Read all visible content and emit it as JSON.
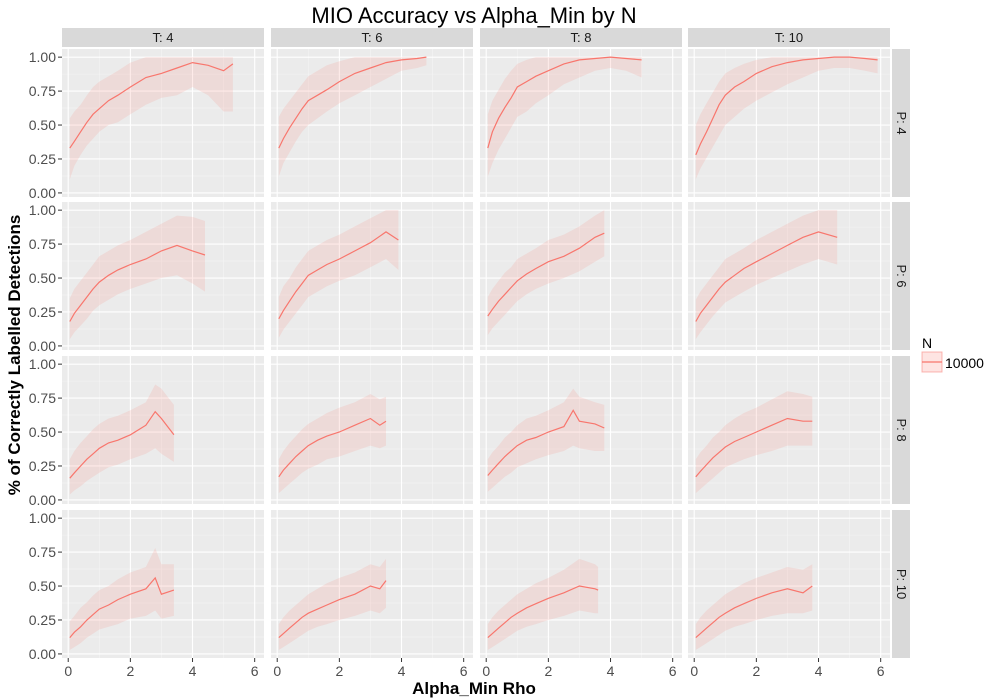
{
  "chart_data": {
    "type": "line",
    "title": "MIO Accuracy vs Alpha_Min by N",
    "xlabel": "Alpha_Min Rho",
    "ylabel": "% of Correctly Labelled Detections",
    "xlim": [
      -0.2,
      6.3
    ],
    "ylim": [
      -0.03,
      1.06
    ],
    "x_ticks": [
      0,
      2,
      4,
      6
    ],
    "y_ticks": [
      0.0,
      0.25,
      0.5,
      0.75,
      1.0
    ],
    "y_tick_labels": [
      "0.00",
      "0.25",
      "0.50",
      "0.75",
      "1.00"
    ],
    "column_facet_labels": [
      "T: 4",
      "T: 6",
      "T: 8",
      "T: 10"
    ],
    "row_facet_labels": [
      "P: 4",
      "P: 6",
      "P: 8",
      "P: 10"
    ],
    "grid": true,
    "legend": {
      "title": "N",
      "placement": "right",
      "entries": [
        "10000"
      ]
    },
    "colors": {
      "line": "#F8766D",
      "ribbon": "#F8766D",
      "panel": "#EBEBEB",
      "strip": "#D9D9D9",
      "grid": "#FFFFFF"
    },
    "panels": [
      [
        {
          "x": [
            0.05,
            0.2,
            0.4,
            0.6,
            0.8,
            1.0,
            1.3,
            1.6,
            2.0,
            2.5,
            3.0,
            3.5,
            4.0,
            4.5,
            5.0,
            5.3
          ],
          "y": [
            0.33,
            0.38,
            0.45,
            0.52,
            0.58,
            0.62,
            0.68,
            0.72,
            0.78,
            0.85,
            0.88,
            0.92,
            0.96,
            0.94,
            0.9,
            0.95
          ],
          "lo": [
            0.1,
            0.2,
            0.28,
            0.35,
            0.4,
            0.45,
            0.5,
            0.52,
            0.58,
            0.65,
            0.7,
            0.72,
            0.78,
            0.72,
            0.6,
            0.6
          ],
          "hi": [
            0.55,
            0.6,
            0.65,
            0.72,
            0.78,
            0.82,
            0.86,
            0.9,
            0.96,
            1.0,
            1.0,
            1.0,
            1.0,
            1.0,
            1.0,
            1.0
          ]
        },
        {
          "x": [
            0.05,
            0.2,
            0.4,
            0.6,
            0.8,
            1.0,
            1.3,
            1.6,
            2.0,
            2.5,
            3.0,
            3.5,
            4.0,
            4.5,
            4.8
          ],
          "y": [
            0.33,
            0.4,
            0.48,
            0.55,
            0.62,
            0.68,
            0.72,
            0.76,
            0.82,
            0.88,
            0.92,
            0.96,
            0.98,
            0.99,
            1.0
          ],
          "lo": [
            0.12,
            0.22,
            0.3,
            0.38,
            0.45,
            0.5,
            0.55,
            0.6,
            0.66,
            0.72,
            0.78,
            0.84,
            0.9,
            0.92,
            0.94
          ],
          "hi": [
            0.56,
            0.62,
            0.68,
            0.74,
            0.8,
            0.86,
            0.9,
            0.94,
            0.97,
            1.0,
            1.0,
            1.0,
            1.0,
            1.0,
            1.0
          ]
        },
        {
          "x": [
            0.05,
            0.2,
            0.4,
            0.6,
            0.8,
            1.0,
            1.3,
            1.6,
            2.0,
            2.5,
            3.0,
            3.5,
            4.0,
            4.5,
            5.0
          ],
          "y": [
            0.33,
            0.45,
            0.55,
            0.63,
            0.7,
            0.78,
            0.82,
            0.86,
            0.9,
            0.95,
            0.98,
            0.99,
            1.0,
            0.99,
            0.98
          ],
          "lo": [
            0.12,
            0.22,
            0.32,
            0.4,
            0.48,
            0.56,
            0.6,
            0.66,
            0.72,
            0.8,
            0.85,
            0.9,
            0.92,
            0.9,
            0.85
          ],
          "hi": [
            0.58,
            0.68,
            0.76,
            0.84,
            0.9,
            0.95,
            0.98,
            1.0,
            1.0,
            1.0,
            1.0,
            1.0,
            1.0,
            1.0,
            1.0
          ]
        },
        {
          "x": [
            0.05,
            0.2,
            0.4,
            0.6,
            0.8,
            1.0,
            1.3,
            1.6,
            2.0,
            2.5,
            3.0,
            3.5,
            4.0,
            4.5,
            5.0,
            5.5,
            5.9
          ],
          "y": [
            0.28,
            0.36,
            0.45,
            0.55,
            0.65,
            0.72,
            0.78,
            0.82,
            0.88,
            0.93,
            0.96,
            0.98,
            0.99,
            1.0,
            1.0,
            0.99,
            0.98
          ],
          "lo": [
            0.1,
            0.18,
            0.26,
            0.34,
            0.42,
            0.5,
            0.56,
            0.62,
            0.68,
            0.74,
            0.8,
            0.85,
            0.9,
            0.92,
            0.92,
            0.9,
            0.88
          ],
          "hi": [
            0.5,
            0.58,
            0.66,
            0.74,
            0.82,
            0.88,
            0.92,
            0.95,
            0.98,
            1.0,
            1.0,
            1.0,
            1.0,
            1.0,
            1.0,
            1.0,
            1.0
          ]
        }
      ],
      [
        {
          "x": [
            0.05,
            0.2,
            0.4,
            0.6,
            0.8,
            1.0,
            1.3,
            1.6,
            2.0,
            2.5,
            3.0,
            3.5,
            4.0,
            4.4
          ],
          "y": [
            0.18,
            0.24,
            0.3,
            0.36,
            0.42,
            0.47,
            0.52,
            0.56,
            0.6,
            0.64,
            0.7,
            0.74,
            0.7,
            0.67
          ],
          "lo": [
            0.05,
            0.1,
            0.15,
            0.2,
            0.26,
            0.3,
            0.34,
            0.38,
            0.42,
            0.46,
            0.5,
            0.52,
            0.46,
            0.4
          ],
          "hi": [
            0.35,
            0.42,
            0.48,
            0.54,
            0.6,
            0.66,
            0.7,
            0.74,
            0.78,
            0.84,
            0.9,
            0.96,
            0.95,
            0.92
          ]
        },
        {
          "x": [
            0.05,
            0.2,
            0.4,
            0.6,
            0.8,
            1.0,
            1.3,
            1.6,
            2.0,
            2.5,
            3.0,
            3.5,
            3.9
          ],
          "y": [
            0.2,
            0.26,
            0.33,
            0.4,
            0.46,
            0.52,
            0.56,
            0.6,
            0.64,
            0.7,
            0.76,
            0.84,
            0.78
          ],
          "lo": [
            0.06,
            0.12,
            0.18,
            0.24,
            0.3,
            0.36,
            0.4,
            0.44,
            0.48,
            0.52,
            0.58,
            0.64,
            0.56
          ],
          "hi": [
            0.36,
            0.44,
            0.5,
            0.58,
            0.64,
            0.7,
            0.74,
            0.78,
            0.82,
            0.88,
            0.94,
            1.0,
            1.0
          ]
        },
        {
          "x": [
            0.05,
            0.2,
            0.4,
            0.6,
            0.8,
            1.0,
            1.3,
            1.6,
            2.0,
            2.5,
            3.0,
            3.5,
            3.8
          ],
          "y": [
            0.22,
            0.27,
            0.33,
            0.38,
            0.43,
            0.48,
            0.53,
            0.57,
            0.62,
            0.66,
            0.72,
            0.8,
            0.83
          ],
          "lo": [
            0.08,
            0.13,
            0.18,
            0.23,
            0.28,
            0.33,
            0.38,
            0.42,
            0.46,
            0.5,
            0.55,
            0.62,
            0.66
          ],
          "hi": [
            0.36,
            0.42,
            0.48,
            0.54,
            0.58,
            0.64,
            0.68,
            0.72,
            0.78,
            0.82,
            0.88,
            0.96,
            1.0
          ]
        },
        {
          "x": [
            0.05,
            0.2,
            0.4,
            0.6,
            0.8,
            1.0,
            1.3,
            1.6,
            2.0,
            2.5,
            3.0,
            3.5,
            4.0,
            4.6
          ],
          "y": [
            0.18,
            0.24,
            0.3,
            0.36,
            0.42,
            0.47,
            0.52,
            0.57,
            0.62,
            0.68,
            0.74,
            0.8,
            0.84,
            0.8
          ],
          "lo": [
            0.05,
            0.1,
            0.16,
            0.22,
            0.27,
            0.32,
            0.36,
            0.4,
            0.45,
            0.5,
            0.55,
            0.6,
            0.64,
            0.6
          ],
          "hi": [
            0.34,
            0.4,
            0.46,
            0.52,
            0.58,
            0.64,
            0.68,
            0.72,
            0.78,
            0.84,
            0.9,
            0.96,
            1.0,
            1.0
          ]
        }
      ],
      [
        {
          "x": [
            0.05,
            0.2,
            0.4,
            0.6,
            0.8,
            1.0,
            1.3,
            1.6,
            2.0,
            2.5,
            2.8,
            3.0,
            3.4
          ],
          "y": [
            0.16,
            0.2,
            0.25,
            0.3,
            0.34,
            0.38,
            0.42,
            0.44,
            0.48,
            0.55,
            0.65,
            0.6,
            0.48
          ],
          "lo": [
            0.04,
            0.07,
            0.1,
            0.14,
            0.17,
            0.2,
            0.24,
            0.26,
            0.3,
            0.34,
            0.38,
            0.34,
            0.28
          ],
          "hi": [
            0.3,
            0.36,
            0.42,
            0.47,
            0.52,
            0.56,
            0.6,
            0.62,
            0.66,
            0.72,
            0.85,
            0.82,
            0.7
          ]
        },
        {
          "x": [
            0.05,
            0.2,
            0.4,
            0.6,
            0.8,
            1.0,
            1.3,
            1.6,
            2.0,
            2.5,
            3.0,
            3.3,
            3.5
          ],
          "y": [
            0.17,
            0.22,
            0.27,
            0.32,
            0.36,
            0.4,
            0.44,
            0.47,
            0.5,
            0.55,
            0.6,
            0.55,
            0.58
          ],
          "lo": [
            0.05,
            0.08,
            0.12,
            0.16,
            0.2,
            0.23,
            0.26,
            0.3,
            0.32,
            0.36,
            0.4,
            0.38,
            0.4
          ],
          "hi": [
            0.3,
            0.36,
            0.42,
            0.47,
            0.52,
            0.56,
            0.6,
            0.64,
            0.68,
            0.72,
            0.78,
            0.74,
            0.76
          ]
        },
        {
          "x": [
            0.05,
            0.2,
            0.4,
            0.6,
            0.8,
            1.0,
            1.3,
            1.6,
            2.0,
            2.5,
            2.8,
            3.0,
            3.5,
            3.8
          ],
          "y": [
            0.18,
            0.22,
            0.27,
            0.32,
            0.36,
            0.4,
            0.44,
            0.46,
            0.5,
            0.54,
            0.66,
            0.58,
            0.56,
            0.53
          ],
          "lo": [
            0.06,
            0.09,
            0.13,
            0.17,
            0.2,
            0.24,
            0.27,
            0.3,
            0.33,
            0.36,
            0.4,
            0.38,
            0.36,
            0.36
          ],
          "hi": [
            0.3,
            0.35,
            0.4,
            0.46,
            0.5,
            0.55,
            0.6,
            0.62,
            0.66,
            0.72,
            0.82,
            0.76,
            0.72,
            0.7
          ]
        },
        {
          "x": [
            0.05,
            0.2,
            0.4,
            0.6,
            0.8,
            1.0,
            1.3,
            1.6,
            2.0,
            2.5,
            3.0,
            3.5,
            3.8
          ],
          "y": [
            0.17,
            0.21,
            0.26,
            0.31,
            0.35,
            0.39,
            0.43,
            0.46,
            0.5,
            0.55,
            0.6,
            0.58,
            0.58
          ],
          "lo": [
            0.05,
            0.08,
            0.12,
            0.16,
            0.2,
            0.24,
            0.27,
            0.3,
            0.33,
            0.36,
            0.4,
            0.4,
            0.4
          ],
          "hi": [
            0.3,
            0.35,
            0.4,
            0.46,
            0.5,
            0.55,
            0.6,
            0.64,
            0.68,
            0.74,
            0.8,
            0.78,
            0.76
          ]
        }
      ],
      [
        {
          "x": [
            0.05,
            0.2,
            0.4,
            0.6,
            0.8,
            1.0,
            1.3,
            1.6,
            2.0,
            2.5,
            2.8,
            3.0,
            3.4
          ],
          "y": [
            0.12,
            0.16,
            0.2,
            0.25,
            0.29,
            0.33,
            0.36,
            0.4,
            0.44,
            0.48,
            0.56,
            0.44,
            0.47
          ],
          "lo": [
            0.03,
            0.05,
            0.08,
            0.12,
            0.15,
            0.18,
            0.2,
            0.22,
            0.26,
            0.28,
            0.32,
            0.26,
            0.28
          ],
          "hi": [
            0.24,
            0.28,
            0.34,
            0.38,
            0.43,
            0.47,
            0.5,
            0.55,
            0.6,
            0.64,
            0.78,
            0.66,
            0.66
          ]
        },
        {
          "x": [
            0.05,
            0.2,
            0.4,
            0.6,
            0.8,
            1.0,
            1.3,
            1.6,
            2.0,
            2.5,
            3.0,
            3.3,
            3.5
          ],
          "y": [
            0.12,
            0.15,
            0.19,
            0.23,
            0.27,
            0.3,
            0.33,
            0.36,
            0.4,
            0.44,
            0.5,
            0.48,
            0.54
          ],
          "lo": [
            0.03,
            0.05,
            0.08,
            0.11,
            0.14,
            0.17,
            0.2,
            0.22,
            0.25,
            0.28,
            0.32,
            0.3,
            0.34
          ],
          "hi": [
            0.22,
            0.27,
            0.32,
            0.36,
            0.4,
            0.44,
            0.48,
            0.52,
            0.56,
            0.6,
            0.66,
            0.64,
            0.7
          ]
        },
        {
          "x": [
            0.05,
            0.2,
            0.4,
            0.6,
            0.8,
            1.0,
            1.3,
            1.6,
            2.0,
            2.5,
            3.0,
            3.5,
            3.6
          ],
          "y": [
            0.12,
            0.15,
            0.19,
            0.23,
            0.27,
            0.3,
            0.34,
            0.37,
            0.41,
            0.45,
            0.5,
            0.48,
            0.47
          ],
          "lo": [
            0.03,
            0.05,
            0.08,
            0.11,
            0.14,
            0.17,
            0.2,
            0.22,
            0.25,
            0.28,
            0.32,
            0.3,
            0.3
          ],
          "hi": [
            0.22,
            0.27,
            0.32,
            0.36,
            0.4,
            0.44,
            0.48,
            0.52,
            0.56,
            0.62,
            0.7,
            0.66,
            0.64
          ]
        },
        {
          "x": [
            0.05,
            0.2,
            0.4,
            0.6,
            0.8,
            1.0,
            1.3,
            1.6,
            2.0,
            2.5,
            3.0,
            3.5,
            3.8
          ],
          "y": [
            0.12,
            0.15,
            0.19,
            0.23,
            0.27,
            0.3,
            0.34,
            0.37,
            0.41,
            0.45,
            0.48,
            0.45,
            0.5
          ],
          "lo": [
            0.03,
            0.05,
            0.08,
            0.11,
            0.14,
            0.17,
            0.2,
            0.22,
            0.25,
            0.28,
            0.3,
            0.3,
            0.32
          ],
          "hi": [
            0.22,
            0.27,
            0.32,
            0.36,
            0.4,
            0.44,
            0.48,
            0.52,
            0.56,
            0.6,
            0.64,
            0.62,
            0.66
          ]
        }
      ]
    ]
  }
}
